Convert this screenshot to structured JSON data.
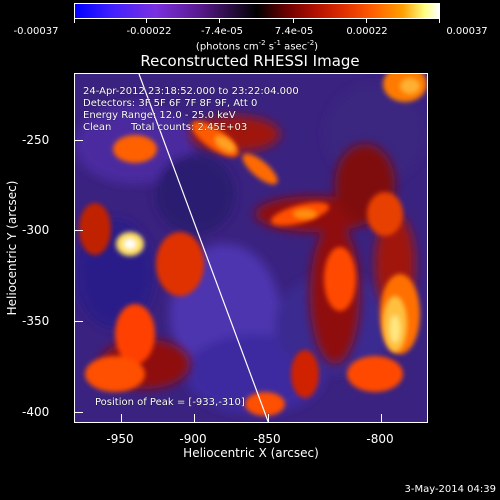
{
  "colorbar": {
    "labels": [
      "-0.00037",
      "-0.00022",
      "-7.4e-05",
      "7.4e-05",
      "0.00022",
      "0.00037"
    ],
    "units_main": "(photons cm",
    "units_exp1": "-2",
    "units_mid": " s",
    "units_exp2": "-1",
    "units_tail": " asec",
    "units_exp3": "-2",
    "units_close": ")"
  },
  "title": "Reconstructed RHESSI Image",
  "annotations": {
    "time_range": "24-Apr-2012 23:18:52.000 to 23:22:04.000",
    "detectors": "Detectors: 3F 5F 6F 7F 8F 9F, Att 0",
    "energy": "Energy Range: 12.0 - 25.0 keV",
    "method": "Clean",
    "counts": "Total counts: 2.45E+03",
    "peak": "Position of Peak = [-933,-310]"
  },
  "axes": {
    "xlabel": "Heliocentric X (arcsec)",
    "ylabel": "Heliocentric Y (arcsec)",
    "xticks": [
      "-950",
      "-900",
      "-850",
      "-800"
    ],
    "yticks": [
      "-250",
      "-300",
      "-350",
      "-400"
    ]
  },
  "footer": "3-May-2014 04:39",
  "colors": {
    "background": "#000000",
    "limb_line": "#ffffff",
    "hot": "#ff5000",
    "cold": "#4a2a9a"
  }
}
